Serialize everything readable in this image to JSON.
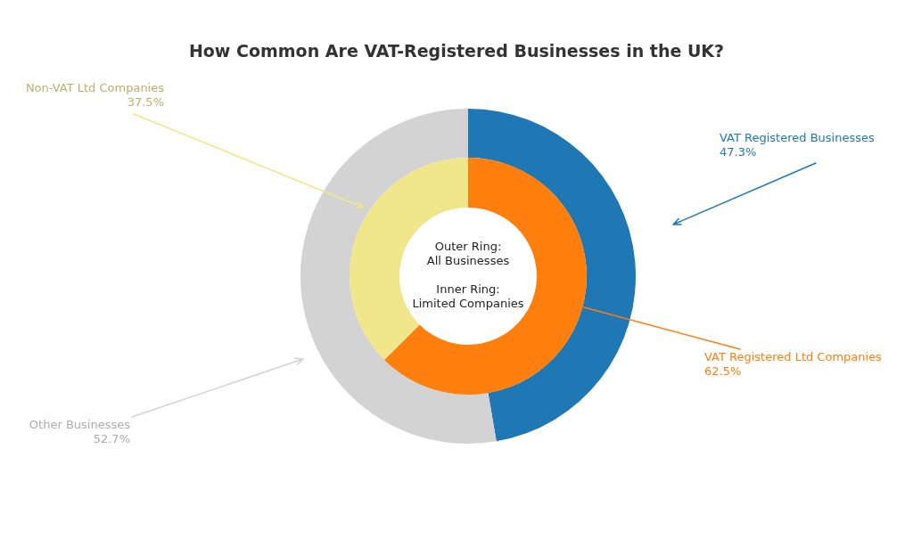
{
  "chart_data": [
    {
      "type": "donut",
      "title": "How Common Are VAT-Registered Businesses in the UK?",
      "categories": [
        "VAT Registered Businesses",
        "Other Businesses"
      ],
      "values": [
        47.3,
        52.7
      ],
      "colors": [
        "#1f77b4",
        "#d3d3d3"
      ],
      "value_labels": [
        "47.3%",
        "52.7%"
      ],
      "legend": false
    },
    {
      "type": "donut",
      "categories": [
        "VAT Registered Ltd Companies",
        "Non-VAT Ltd Companies"
      ],
      "values": [
        62.5,
        37.5
      ],
      "colors": [
        "#ff7f0e",
        "#f0e68c"
      ],
      "value_labels": [
        "62.5%",
        "37.5%"
      ],
      "legend": false,
      "annotations": [
        "Outer Ring:\nAll Businesses",
        "Inner Ring:\nLimited Companies"
      ]
    }
  ]
}
